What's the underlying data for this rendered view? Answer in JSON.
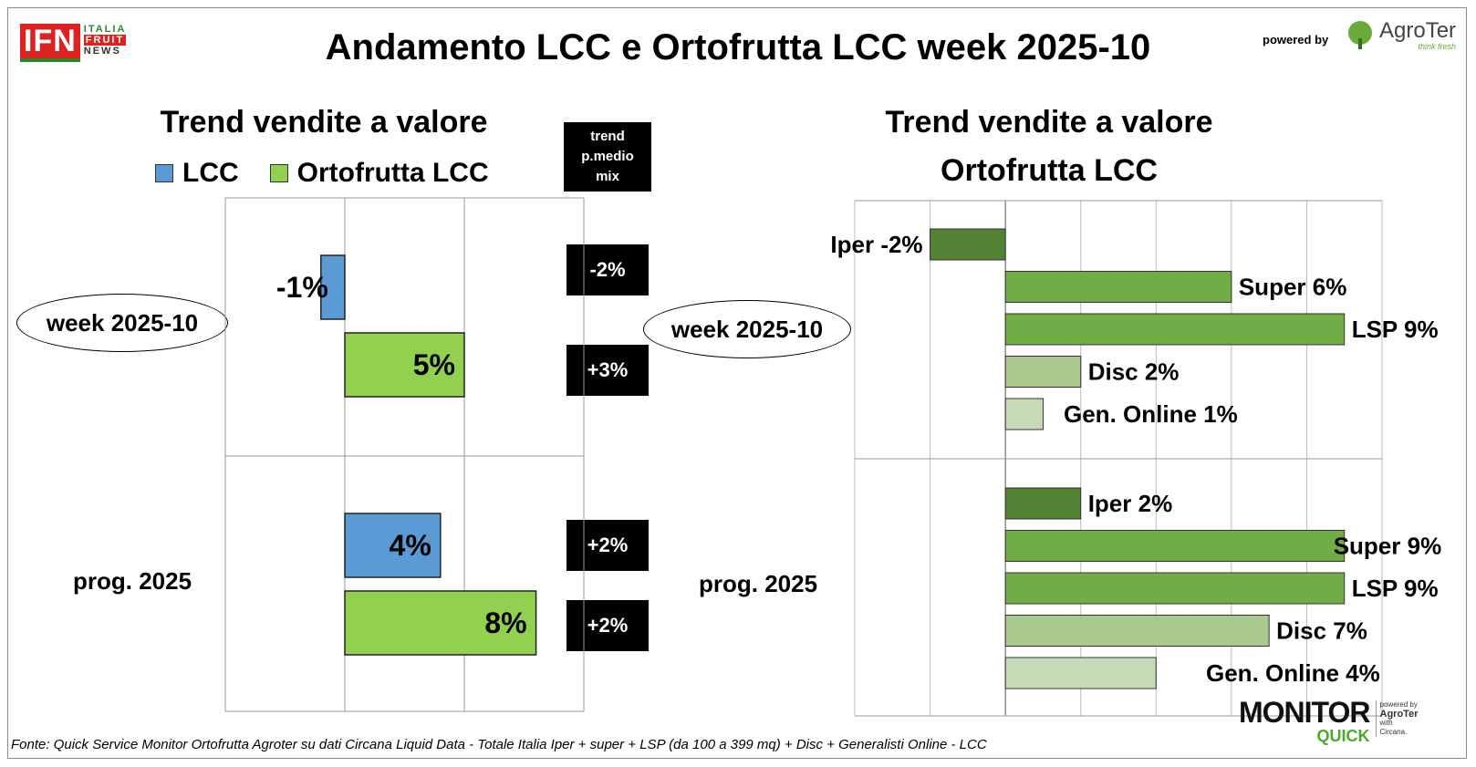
{
  "header": {
    "title": "Andamento LCC e Ortofrutta LCC week 2025-10",
    "ifn_logo": {
      "main": "IFN",
      "line1": "ITALIA",
      "line2": "FRUIT",
      "line3": "NEWS"
    },
    "powered_by": "powered by",
    "agroter_logo": {
      "name": "AgroTer",
      "tagline": "think fresh"
    }
  },
  "left": {
    "subtitle": "Trend vendite a valore",
    "legend": [
      {
        "label": "LCC",
        "color": "#5b9bd5"
      },
      {
        "label": "Ortofrutta LCC",
        "color": "#92d050"
      }
    ],
    "tpm_header": [
      "trend",
      "p.medio",
      "mix"
    ],
    "groups": [
      {
        "label": "week 2025-10",
        "tpm": [
          "-2%",
          "+3%"
        ]
      },
      {
        "label": "prog. 2025",
        "tpm": [
          "+2%",
          "+2%"
        ]
      }
    ]
  },
  "right": {
    "subtitle_line1": "Trend vendite a valore",
    "subtitle_line2": "Ortofrutta LCC",
    "groups": [
      {
        "label": "week 2025-10"
      },
      {
        "label": "prog. 2025"
      }
    ]
  },
  "chart_data": [
    {
      "type": "bar",
      "orientation": "horizontal",
      "title": "Trend vendite a valore",
      "categories": [
        "week 2025-10",
        "prog. 2025"
      ],
      "series": [
        {
          "name": "LCC",
          "values": [
            -1,
            4
          ],
          "labels": [
            "-1%",
            "4%"
          ],
          "color": "#5b9bd5"
        },
        {
          "name": "Ortofrutta LCC",
          "values": [
            5,
            8
          ],
          "labels": [
            "5%",
            "8%"
          ],
          "color": "#92d050"
        }
      ],
      "xlim": [
        -5,
        10
      ],
      "legend": "top"
    },
    {
      "type": "bar",
      "orientation": "horizontal",
      "title": "Trend vendite a valore Ortofrutta LCC",
      "categories": [
        "week 2025-10",
        "prog. 2025"
      ],
      "series": [
        {
          "name": "Iper",
          "values": [
            -2,
            2
          ],
          "color": "#548235"
        },
        {
          "name": "Super",
          "values": [
            6,
            9
          ],
          "color": "#70ad47"
        },
        {
          "name": "LSP",
          "values": [
            9,
            9
          ],
          "color": "#70ad47"
        },
        {
          "name": "Disc",
          "values": [
            2,
            7
          ],
          "color": "#a9c98f"
        },
        {
          "name": "Gen. Online",
          "values": [
            1,
            4
          ],
          "color": "#c6dbb5"
        }
      ],
      "bar_labels": [
        [
          "Iper -2%",
          "Super 6%",
          "LSP 9%",
          "Disc 2%",
          "Gen. Online 1%"
        ],
        [
          "Iper 2%",
          "Super 9%",
          "LSP 9%",
          "Disc 7%",
          "Gen. Online 4%"
        ]
      ],
      "xlim": [
        -4,
        10
      ]
    }
  ],
  "footer": {
    "source": "Fonte: Quick Service Monitor Ortofrutta Agroter su dati Circana Liquid Data - Totale Italia Iper + super + LSP (da 100 a 399 mq) + Disc + Generalisti Online - LCC",
    "monitor_logo": {
      "word1": "MONITOR",
      "word2": "QUICK",
      "powered": "powered by",
      "agroter": "AgroTer",
      "with": "with",
      "circana": "Circana."
    }
  }
}
